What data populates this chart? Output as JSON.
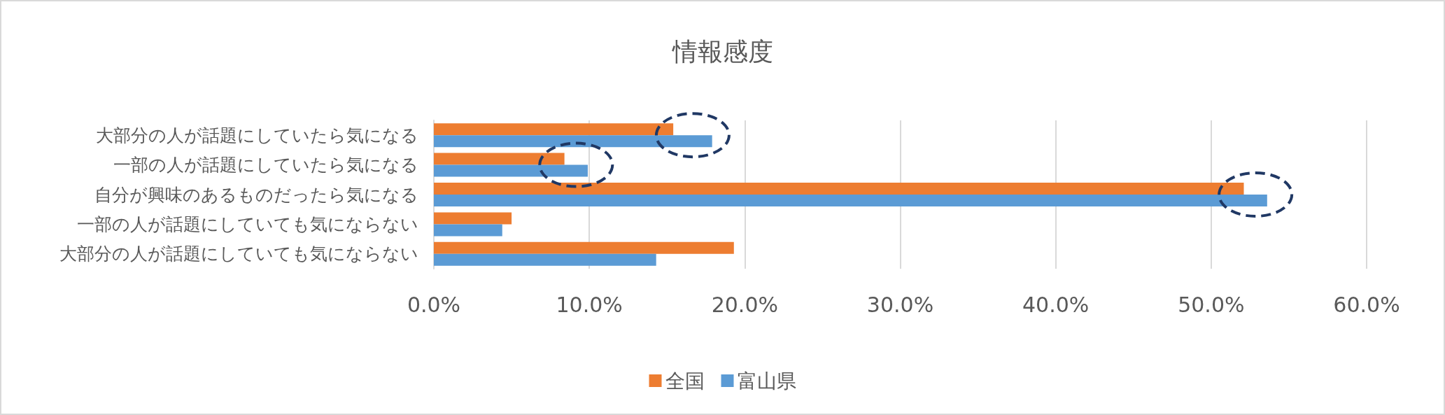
{
  "chart_data": {
    "type": "bar",
    "orientation": "horizontal",
    "title": "情報感度",
    "categories": [
      "大部分の人が話題にしていたら気になる",
      "一部の人が話題にしていたら気になる",
      "自分が興味のあるものだったら気になる",
      "一部の人が話題にしていても気にならない",
      "大部分の人が話題にしていても気にならない"
    ],
    "series": [
      {
        "name": "全国",
        "color": "#ed7d31",
        "values": [
          15.4,
          8.4,
          52.1,
          5.0,
          19.3
        ]
      },
      {
        "name": "富山県",
        "color": "#5b9bd5",
        "values": [
          17.9,
          9.9,
          53.6,
          4.4,
          14.3
        ]
      }
    ],
    "xlim": [
      0,
      60
    ],
    "xticks": [
      {
        "value": 0,
        "label": "0.0%"
      },
      {
        "value": 10,
        "label": "10.0%"
      },
      {
        "value": 20,
        "label": "20.0%"
      },
      {
        "value": 30,
        "label": "30.0%"
      },
      {
        "value": 40,
        "label": "40.0%"
      },
      {
        "value": 50,
        "label": "50.0%"
      },
      {
        "value": 60,
        "label": "60.0%"
      }
    ],
    "grid": "x",
    "legend": "bottom"
  }
}
